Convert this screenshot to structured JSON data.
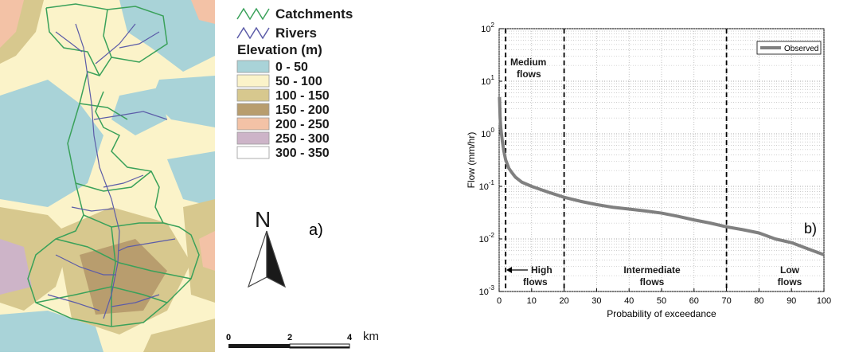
{
  "map": {
    "panel_label": "a)",
    "north_label": "N",
    "legend": {
      "catchments_label": "Catchments",
      "rivers_label": "Rivers",
      "elevation_title": "Elevation (m)",
      "classes": [
        {
          "label": "0 - 50",
          "color": "#a9d3d8"
        },
        {
          "label": "50 - 100",
          "color": "#fbf3c9"
        },
        {
          "label": "100 - 150",
          "color": "#d7c88e"
        },
        {
          "label": "150 - 200",
          "color": "#b89d6e"
        },
        {
          "label": "200 - 250",
          "color": "#f3c2a6"
        },
        {
          "label": "250 - 300",
          "color": "#cdb4c8"
        },
        {
          "label": "300 - 350",
          "color": "#ffffff"
        }
      ],
      "catchment_color": "#3aa15a",
      "river_color": "#5c5ca8"
    },
    "scale_bar": {
      "ticks": [
        "0",
        "2",
        "4"
      ],
      "unit": "km"
    }
  },
  "chart_data": {
    "type": "line",
    "panel_label": "b)",
    "xlabel": "Probability of exceedance",
    "ylabel": "Flow (mm/hr)",
    "xlim": [
      0,
      100
    ],
    "ylim": [
      0.001,
      100
    ],
    "yscale": "log",
    "grid": true,
    "legend_position": "top-right",
    "x_ticks": [
      "0",
      "10",
      "20",
      "30",
      "40",
      "50",
      "60",
      "70",
      "80",
      "90",
      "100"
    ],
    "y_ticks": [
      {
        "base": "10",
        "exp": "-3",
        "value": 0.001
      },
      {
        "base": "10",
        "exp": "-2",
        "value": 0.01
      },
      {
        "base": "10",
        "exp": "-1",
        "value": 0.1
      },
      {
        "base": "10",
        "exp": "0",
        "value": 1
      },
      {
        "base": "10",
        "exp": "1",
        "value": 10
      },
      {
        "base": "10",
        "exp": "2",
        "value": 100
      }
    ],
    "series": [
      {
        "name": "Observed",
        "color": "#808080",
        "x": [
          0.1,
          0.3,
          0.5,
          1,
          1.5,
          2,
          3,
          4,
          5,
          7,
          10,
          15,
          20,
          25,
          30,
          35,
          40,
          45,
          50,
          55,
          60,
          65,
          70,
          75,
          80,
          85,
          90,
          95,
          100
        ],
        "y": [
          5,
          2,
          1.3,
          0.7,
          0.45,
          0.32,
          0.22,
          0.18,
          0.15,
          0.12,
          0.1,
          0.078,
          0.062,
          0.052,
          0.045,
          0.04,
          0.037,
          0.034,
          0.031,
          0.027,
          0.023,
          0.02,
          0.017,
          0.015,
          0.013,
          0.01,
          0.0085,
          0.0065,
          0.005
        ]
      }
    ],
    "thresholds": [
      2,
      20,
      70
    ],
    "annotations": {
      "medium": [
        "Medium",
        "flows"
      ],
      "high": [
        "High",
        "flows"
      ],
      "intermediate": [
        "Intermediate",
        "flows"
      ],
      "low": [
        "Low",
        "flows"
      ]
    }
  }
}
